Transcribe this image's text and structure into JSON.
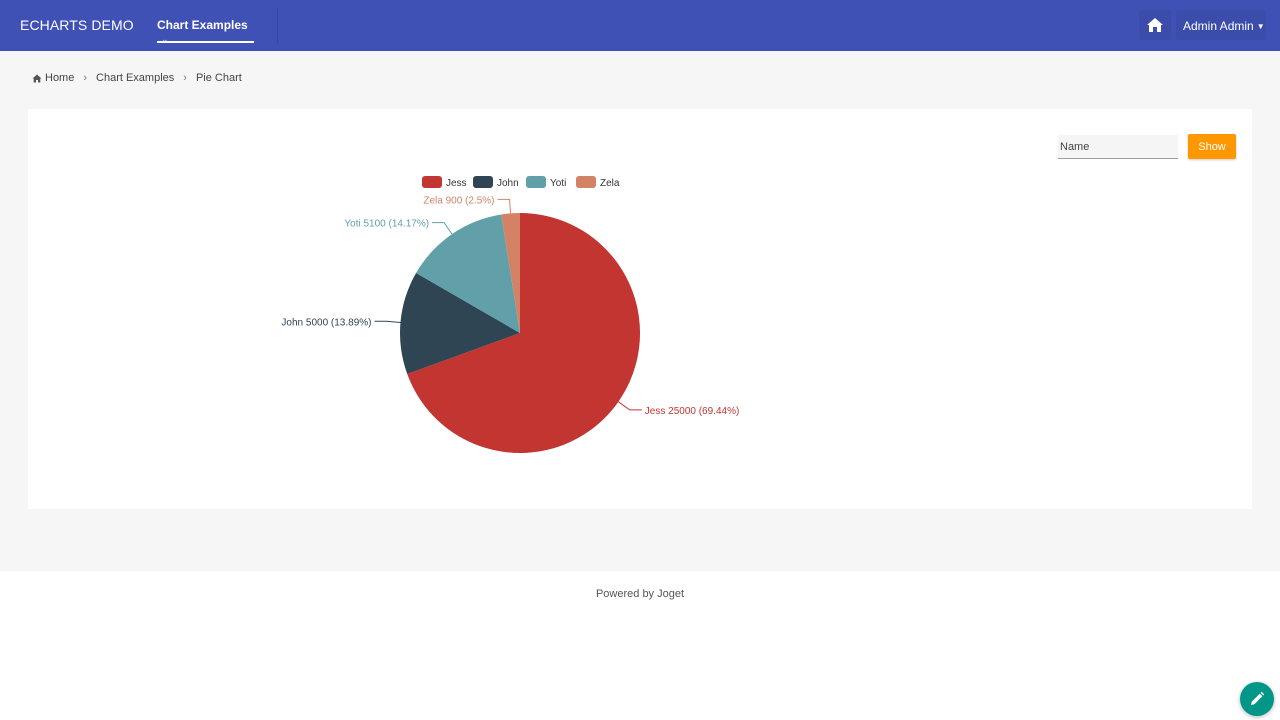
{
  "navbar": {
    "brand": "ECHARTS DEMO",
    "menu_label": "Chart Examples",
    "user_label": "Admin Admin",
    "home_icon": "home-icon",
    "background": "#3f51b5"
  },
  "breadcrumb": {
    "items": [
      "Home",
      "Chart Examples",
      "Pie Chart"
    ]
  },
  "filter": {
    "name_placeholder": "Name",
    "name_value": "",
    "show_label": "Show",
    "show_color": "#ff9800"
  },
  "chart_data": {
    "type": "pie",
    "legend_position": "top",
    "series": [
      {
        "name": "Jess",
        "value": 25000,
        "percent": "69.44%",
        "color": "#c23531",
        "label": "Jess 25000 (69.44%)"
      },
      {
        "name": "John",
        "value": 5000,
        "percent": "13.89%",
        "color": "#2f4554",
        "label": "John 5000 (13.89%)"
      },
      {
        "name": "Yoti",
        "value": 5100,
        "percent": "14.17%",
        "color": "#61a0a8",
        "label": "Yoti 5100 (14.17%)"
      },
      {
        "name": "Zela",
        "value": 900,
        "percent": "2.5%",
        "color": "#d48265",
        "label": "Zela 900 (2.5%)"
      }
    ]
  },
  "footer": {
    "text": "Powered by Joget"
  },
  "fab": {
    "icon": "pencil-icon",
    "color": "#009688"
  }
}
